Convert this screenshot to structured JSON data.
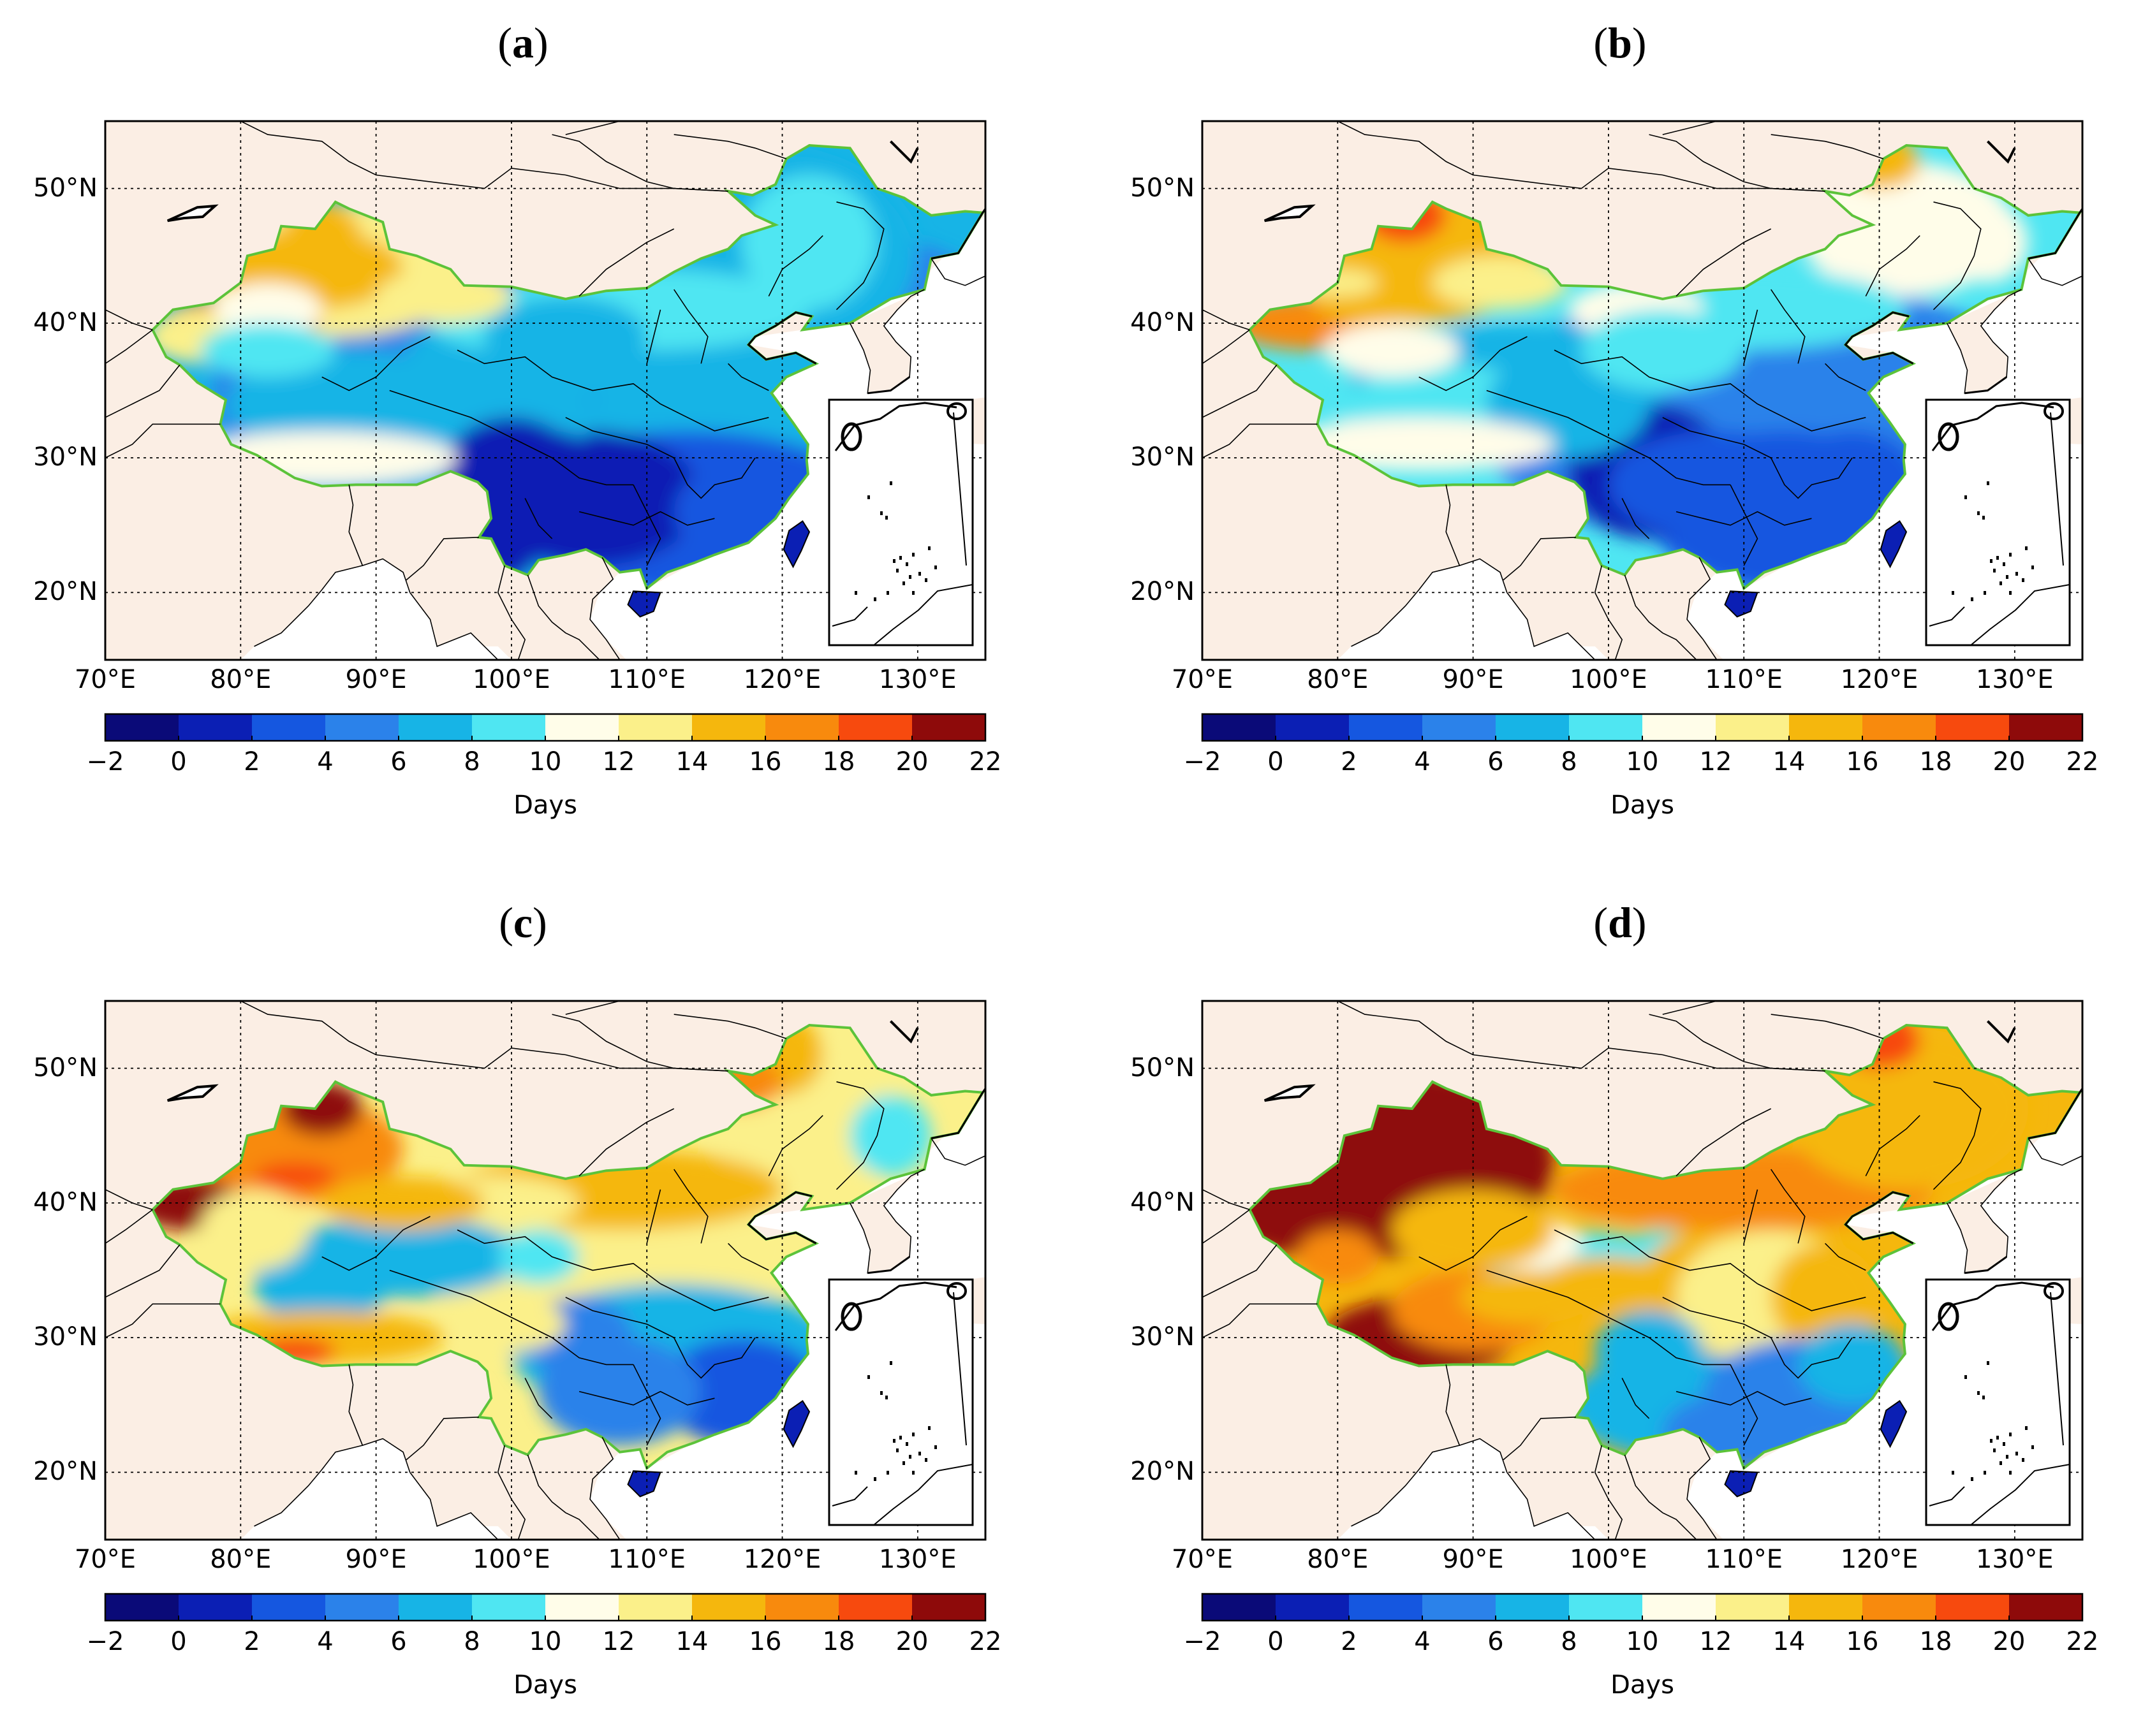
{
  "figure": {
    "panels": [
      {
        "label": "a",
        "id": "panel-a"
      },
      {
        "label": "b",
        "id": "panel-b"
      },
      {
        "label": "c",
        "id": "panel-c"
      },
      {
        "label": "d",
        "id": "panel-d"
      }
    ],
    "lat_ticks": [
      "50°N",
      "40°N",
      "30°N",
      "20°N"
    ],
    "lon_ticks": [
      "70°E",
      "80°E",
      "90°E",
      "100°E",
      "110°E",
      "120°E",
      "130°E"
    ],
    "colorbar": {
      "ticks": [
        "−2",
        "0",
        "2",
        "4",
        "6",
        "8",
        "10",
        "12",
        "14",
        "16",
        "18",
        "20",
        "22"
      ],
      "colors": [
        "#0a0a78",
        "#0b1fb4",
        "#1557e0",
        "#2b82ea",
        "#17b4e6",
        "#4fe6f2",
        "#fffde9",
        "#fbf08a",
        "#f5b70d",
        "#f88a0d",
        "#f74a0e",
        "#8e0a0a"
      ],
      "title": "Days"
    },
    "colors": {
      "land_outside": "#fbeee4",
      "coast_green": "#5cc33a",
      "ocean": "#ffffff"
    }
  }
}
